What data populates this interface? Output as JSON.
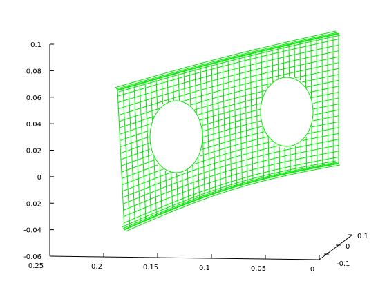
{
  "chart_data": {
    "type": "mesh",
    "title": "",
    "xlabel": "",
    "ylabel": "",
    "zlabel": "",
    "mesh_color": "#00e600",
    "axis_color": "#000000",
    "background": "#ffffff",
    "z_axis": {
      "range": [
        -0.06,
        0.1
      ],
      "ticks": [
        "0.1",
        "0.08",
        "0.06",
        "0.04",
        "0.02",
        "0",
        "-0.02",
        "-0.04",
        "-0.06"
      ]
    },
    "x_axis": {
      "range": [
        0,
        0.25
      ],
      "ticks": [
        "0.25",
        "0.2",
        "0.15",
        "0.1",
        "0.05",
        "0"
      ]
    },
    "y_axis": {
      "range": [
        -0.1,
        0.1
      ],
      "ticks": [
        "0.1",
        "0",
        "-0.1"
      ]
    },
    "holes": 2,
    "grid": false
  }
}
